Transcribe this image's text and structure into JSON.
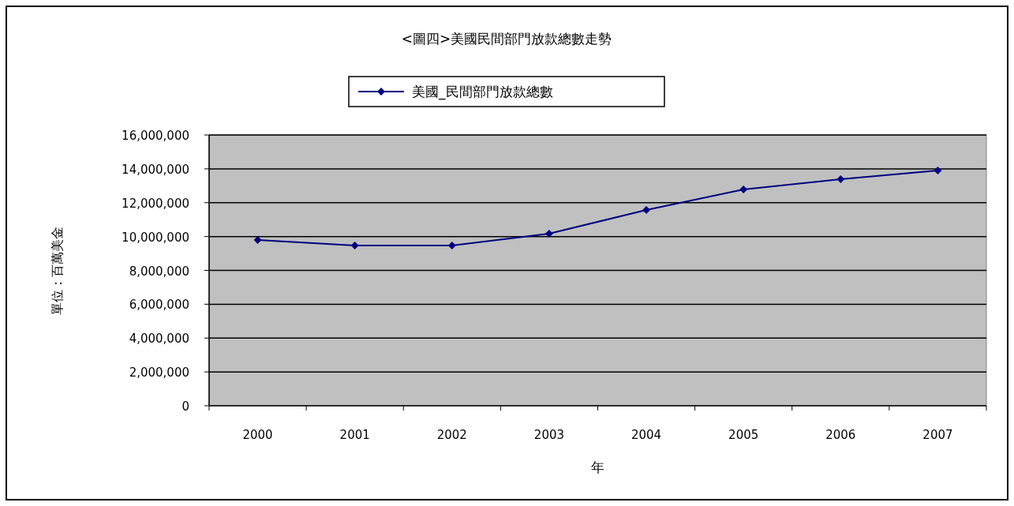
{
  "chart_data": {
    "type": "line",
    "title": "<圖四>美國民間部門放款總數走勢",
    "xlabel": "年",
    "ylabel": "單位：百萬美金",
    "categories": [
      "2000",
      "2001",
      "2002",
      "2003",
      "2004",
      "2005",
      "2006",
      "2007"
    ],
    "series": [
      {
        "name": "美國_民間部門放款總數",
        "color": "#000080",
        "values": [
          9800000,
          9470000,
          9470000,
          10170000,
          11570000,
          12780000,
          13390000,
          13900000
        ]
      }
    ],
    "ylim": [
      0,
      16000000
    ],
    "yticks": [
      {
        "value": 0,
        "label": "0"
      },
      {
        "value": 2000000,
        "label": "2,000,000"
      },
      {
        "value": 4000000,
        "label": "4,000,000"
      },
      {
        "value": 6000000,
        "label": "6,000,000"
      },
      {
        "value": 8000000,
        "label": "8,000,000"
      },
      {
        "value": 10000000,
        "label": "10,000,000"
      },
      {
        "value": 12000000,
        "label": "12,000,000"
      },
      {
        "value": 14000000,
        "label": "14,000,000"
      },
      {
        "value": 16000000,
        "label": "16,000,000"
      }
    ],
    "grid": "y",
    "legend": "top",
    "marker": "diamond",
    "line_style": "solid"
  }
}
